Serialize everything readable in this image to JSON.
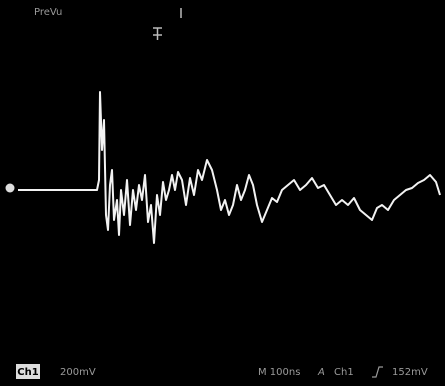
{
  "screen": {
    "mode": "PreVu",
    "channel": "Ch1",
    "volts_per_div": "200mV",
    "timebase": "M 100ns",
    "trigger_source": "Ch1",
    "trigger_level": "152mV"
  }
}
